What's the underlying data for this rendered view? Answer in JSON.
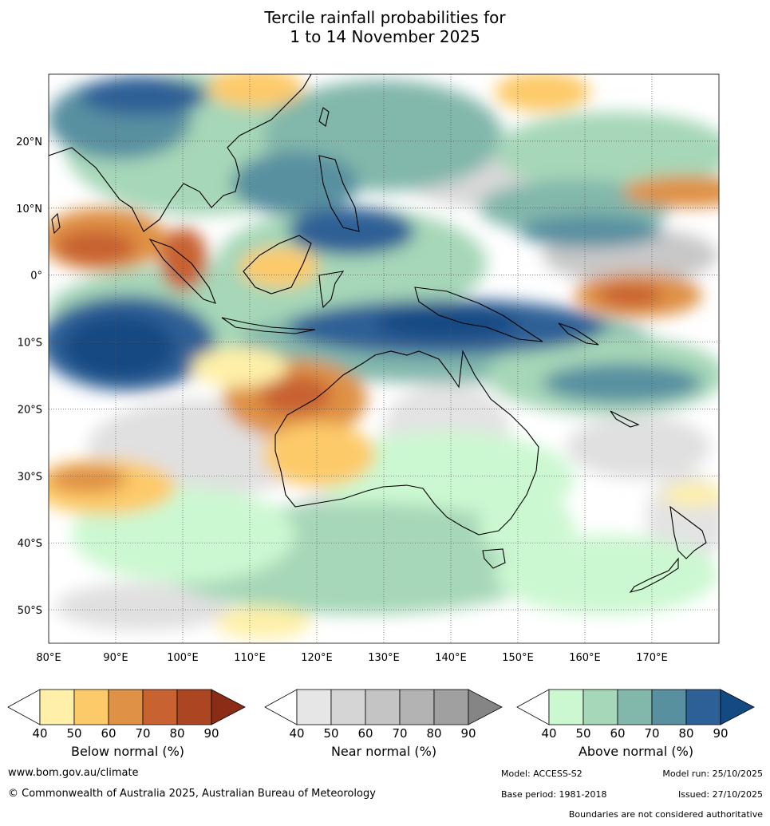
{
  "title": {
    "line1": "Tercile rainfall probabilities for",
    "line2": "1 to 14 November 2025"
  },
  "map": {
    "lat_labels": [
      "20°N",
      "10°N",
      "0°",
      "10°S",
      "20°S",
      "30°S",
      "40°S",
      "50°S"
    ],
    "lon_labels": [
      "80°E",
      "90°E",
      "100°E",
      "110°E",
      "120°E",
      "130°E",
      "140°E",
      "150°E",
      "160°E",
      "170°E"
    ],
    "lat_values": [
      20,
      10,
      0,
      -10,
      -20,
      -30,
      -40,
      -50
    ],
    "lon_values": [
      80,
      90,
      100,
      110,
      120,
      130,
      140,
      150,
      160,
      170
    ],
    "lon_range": [
      80,
      180
    ],
    "lat_range": [
      -55,
      30
    ]
  },
  "legend": {
    "below": {
      "label": "Below normal (%)",
      "ticks": [
        "40",
        "50",
        "60",
        "70",
        "80",
        "90"
      ],
      "colors": [
        "#fef0a8",
        "#fdca69",
        "#df9145",
        "#c86230",
        "#ac4622",
        "#8b2d16"
      ]
    },
    "near": {
      "label": "Near normal (%)",
      "ticks": [
        "40",
        "50",
        "60",
        "70",
        "80",
        "90"
      ],
      "colors": [
        "#e6e6e6",
        "#d5d5d5",
        "#c4c4c4",
        "#b3b3b3",
        "#a0a0a0",
        "#858585"
      ]
    },
    "above": {
      "label": "Above normal (%)",
      "ticks": [
        "40",
        "50",
        "60",
        "70",
        "80",
        "90"
      ],
      "colors": [
        "#ccf8d1",
        "#a6d7b8",
        "#82b7ab",
        "#5890a0",
        "#2d6096",
        "#134a82"
      ]
    }
  },
  "footer": {
    "website": "www.bom.gov.au/climate",
    "copyright": "© Commonwealth of Australia 2025, Australian Bureau of Meteorology",
    "model": "Model: ACCESS-S2",
    "model_run": "Model run: 25/10/2025",
    "base_period": "Base period: 1981-2018",
    "issued": "Issued: 27/10/2025",
    "disclaimer": "Boundaries are not considered authoritative"
  }
}
